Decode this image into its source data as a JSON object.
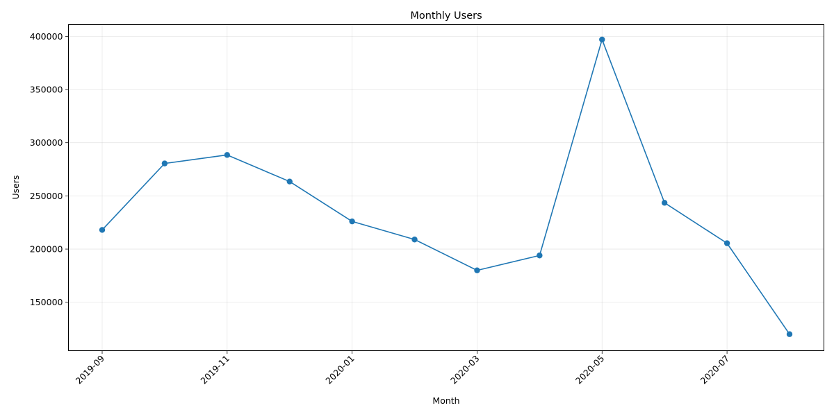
{
  "chart_data": {
    "type": "line",
    "title": "Monthly Users",
    "xlabel": "Month",
    "ylabel": "Users",
    "x": [
      "2019-09",
      "2019-10",
      "2019-11",
      "2019-12",
      "2020-01",
      "2020-02",
      "2020-03",
      "2020-04",
      "2020-05",
      "2020-06",
      "2020-07",
      "2020-08"
    ],
    "series": [
      {
        "values": [
          218000,
          280500,
          288500,
          263500,
          226000,
          209000,
          180000,
          194000,
          397000,
          243500,
          205500,
          120000
        ],
        "color": "#1f77b4",
        "marker": "circle"
      }
    ],
    "xticks": [
      "2019-09",
      "2019-11",
      "2020-01",
      "2020-03",
      "2020-05",
      "2020-07"
    ],
    "yticks": [
      150000,
      200000,
      250000,
      300000,
      350000,
      400000
    ],
    "ylim": [
      104500,
      411000
    ],
    "grid": true
  }
}
